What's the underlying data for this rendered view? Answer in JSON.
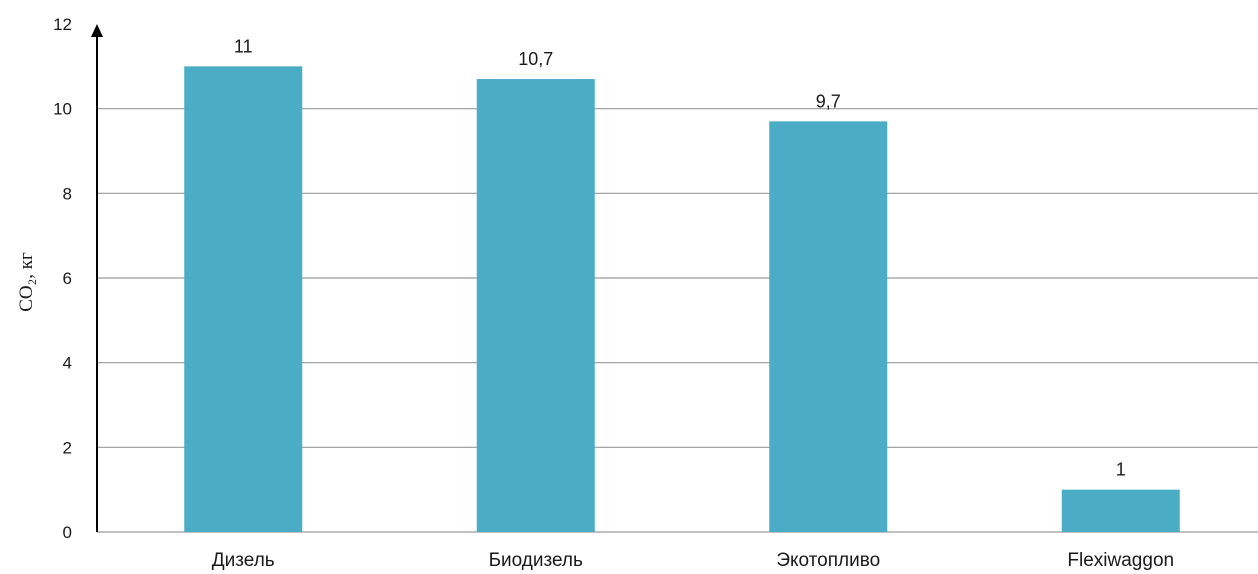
{
  "chart_data": {
    "type": "bar",
    "categories": [
      "Дизель",
      "Биодизель",
      "Экотопливо",
      "Flexiwaggon"
    ],
    "values": [
      11,
      10.7,
      9.7,
      1
    ],
    "data_labels": [
      "11",
      "10,7",
      "9,7",
      "1"
    ],
    "ylabel": "CO₂, кг",
    "ylim": [
      0,
      12
    ],
    "yticks": [
      0,
      2,
      4,
      6,
      8,
      10,
      12
    ],
    "grid": true,
    "bar_color": "#4BACC6"
  }
}
